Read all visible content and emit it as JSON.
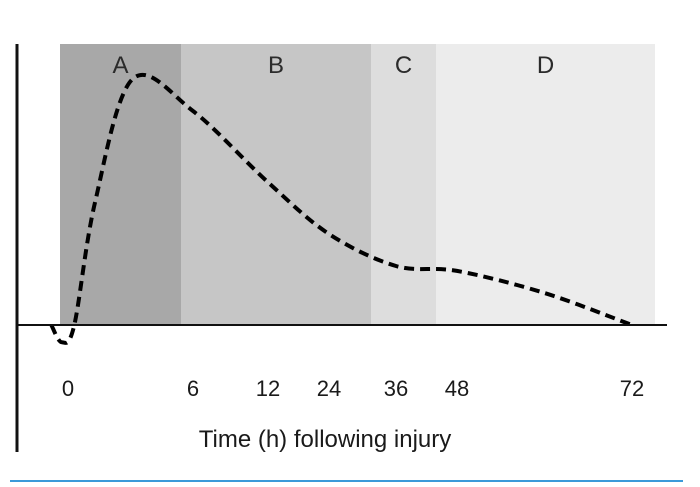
{
  "chart_data": {
    "type": "line",
    "xlabel": "Time (h) following injury",
    "ylabel": "",
    "title": "",
    "grid": false,
    "x_ticks": [
      "0",
      "6",
      "12",
      "24",
      "36",
      "48",
      "72"
    ],
    "phases": [
      {
        "label": "A",
        "from": "0",
        "to": "6",
        "color": "#a8a8a8"
      },
      {
        "label": "B",
        "from": "6",
        "to": "36",
        "color": "#c6c6c6"
      },
      {
        "label": "C",
        "from": "36",
        "to": "48",
        "color": "#dddddd"
      },
      {
        "label": "D",
        "from": "48",
        "to": "72",
        "color": "#ececec"
      }
    ],
    "series": [
      {
        "style": "dashed",
        "color": "#000000",
        "y_range": [
          -0.1,
          1.0
        ],
        "points": [
          {
            "x": -0.8,
            "y": 0.0
          },
          {
            "x": -0.3,
            "y": -0.07
          },
          {
            "x": 0.3,
            "y": 0.0
          },
          {
            "x": 1.3,
            "y": 0.5
          },
          {
            "x": 3.1,
            "y": 1.0
          },
          {
            "x": 6.0,
            "y": 0.87
          },
          {
            "x": 12.0,
            "y": 0.58
          },
          {
            "x": 24.0,
            "y": 0.37
          },
          {
            "x": 36.0,
            "y": 0.24
          },
          {
            "x": 48.0,
            "y": 0.22
          },
          {
            "x": 60.0,
            "y": 0.13
          },
          {
            "x": 72.0,
            "y": 0.0
          }
        ]
      }
    ]
  }
}
